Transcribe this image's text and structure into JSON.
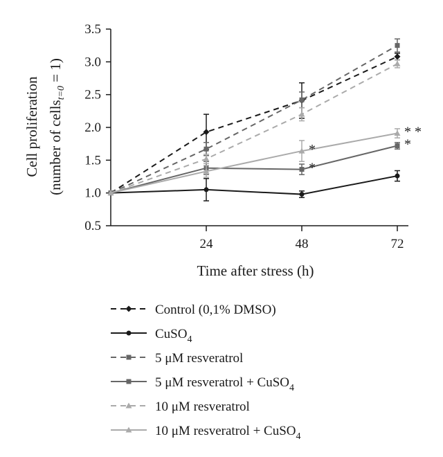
{
  "chart_data": {
    "type": "line",
    "xlabel": "Time after stress (h)",
    "ylabel_line1": "Cell proliferation",
    "ylabel_line2_prefix": "(number of cells",
    "ylabel_line2_subscript": "t=0",
    "ylabel_line2_suffix": " = 1)",
    "x": [
      0,
      24,
      48,
      72
    ],
    "x_tick_labels": [
      "24",
      "48",
      "72"
    ],
    "xlim": [
      0,
      72
    ],
    "ylim": [
      0.5,
      3.5
    ],
    "y_ticks": [
      "0.5",
      "1.0",
      "1.5",
      "2.0",
      "2.5",
      "3.0",
      "3.5"
    ],
    "grid": false,
    "legend_position": "bottom",
    "series": [
      {
        "name": "Control (0,1% DMSO)",
        "color": "#1a1a1a",
        "dash": true,
        "marker": "diamond",
        "values": [
          1.0,
          1.93,
          2.41,
          3.08
        ],
        "errors": [
          0,
          0.27,
          0.27,
          0.05
        ]
      },
      {
        "name": "CuSO",
        "name_subscript": "4",
        "color": "#1a1a1a",
        "dash": false,
        "marker": "circle",
        "values": [
          1.0,
          1.05,
          0.98,
          1.26
        ],
        "errors": [
          0,
          0.17,
          0.05,
          0.08
        ]
      },
      {
        "name": "5 μM resveratrol",
        "color": "#666666",
        "dash": true,
        "marker": "square",
        "values": [
          1.0,
          1.67,
          2.42,
          3.25
        ],
        "errors": [
          0,
          0.1,
          0.12,
          0.1
        ]
      },
      {
        "name": "5 μM resveratrol + CuSO",
        "name_subscript": "4",
        "color": "#666666",
        "dash": false,
        "marker": "square",
        "values": [
          1.0,
          1.38,
          1.36,
          1.72
        ],
        "errors": [
          0,
          0.1,
          0.08,
          0.05
        ]
      },
      {
        "name": "10 μM resveratrol",
        "color": "#aaaaaa",
        "dash": true,
        "marker": "triangle",
        "values": [
          1.0,
          1.52,
          2.2,
          2.97
        ],
        "errors": [
          0,
          0.07,
          0.1,
          0.06
        ]
      },
      {
        "name": "10 μM resveratrol + CuSO",
        "name_subscript": "4",
        "color": "#aaaaaa",
        "dash": false,
        "marker": "triangle",
        "values": [
          1.0,
          1.33,
          1.64,
          1.91
        ],
        "errors": [
          0,
          0.09,
          0.16,
          0.07
        ]
      }
    ],
    "annotations": [
      {
        "text": "*",
        "x": 48,
        "y": 1.64
      },
      {
        "text": "*",
        "x": 48,
        "y": 1.36
      },
      {
        "text": "* *",
        "x": 72,
        "y": 1.91
      },
      {
        "text": "*",
        "x": 72,
        "y": 1.72
      }
    ]
  }
}
